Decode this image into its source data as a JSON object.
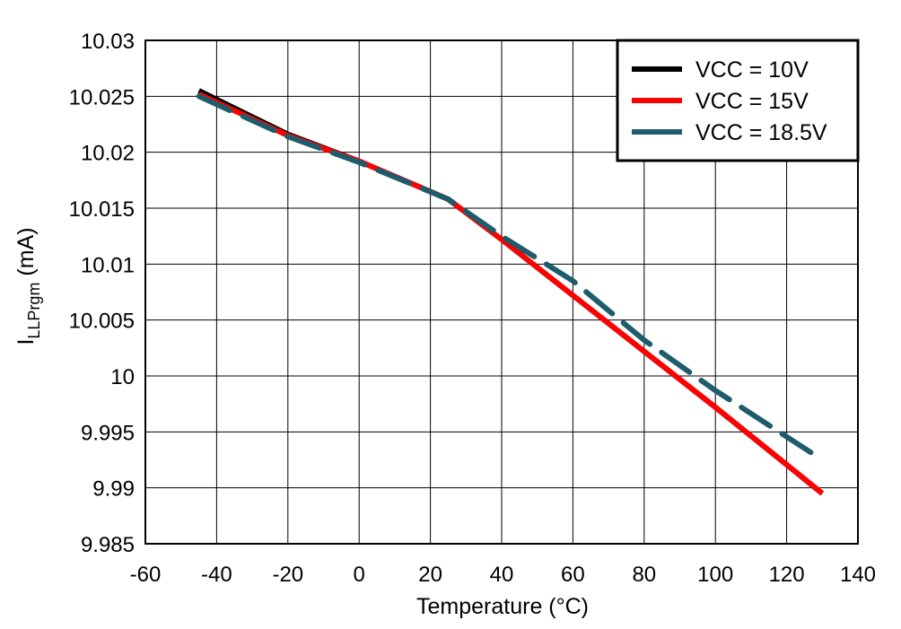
{
  "chart_data": {
    "type": "line",
    "title": "",
    "xlabel": "Temperature (°C)",
    "ylabel_main": "I",
    "ylabel_sub": "LLPrgm",
    "ylabel_unit": " (mA)",
    "xlim": [
      -60,
      140
    ],
    "ylim": [
      9.985,
      10.03
    ],
    "xticks": [
      -60,
      -40,
      -20,
      0,
      20,
      40,
      60,
      80,
      100,
      120,
      140
    ],
    "xtick_labels": [
      "-60",
      "-40",
      "-20",
      "0",
      "20",
      "40",
      "60",
      "80",
      "100",
      "120",
      "140"
    ],
    "yticks": [
      9.985,
      9.99,
      9.995,
      10,
      10.005,
      10.01,
      10.015,
      10.02,
      10.025,
      10.03
    ],
    "ytick_labels": [
      "9.985",
      "9.99",
      "9.995",
      "10",
      "10.005",
      "10.01",
      "10.015",
      "10.02",
      "10.025",
      "10.03"
    ],
    "grid": true,
    "legend_position": "top-right",
    "series": [
      {
        "name": "VCC = 10V",
        "color": "#000000",
        "style": "solid",
        "x": [
          -45,
          -20,
          0,
          25,
          40,
          60,
          80,
          100,
          130
        ],
        "y": [
          10.0255,
          10.0216,
          10.0192,
          10.0158,
          10.0122,
          10.0072,
          10.0022,
          9.9972,
          9.9895
        ]
      },
      {
        "name": "VCC = 15V",
        "color": "#ff0000",
        "style": "solid",
        "x": [
          -45,
          -20,
          0,
          25,
          40,
          60,
          80,
          100,
          130
        ],
        "y": [
          10.0252,
          10.0215,
          10.0192,
          10.0158,
          10.0122,
          10.0072,
          10.0022,
          9.9972,
          9.9895
        ]
      },
      {
        "name": "VCC = 18.5V",
        "color": "#1f5c6b",
        "style": "dashed",
        "x": [
          -45,
          -20,
          0,
          25,
          40,
          60,
          80,
          100,
          130
        ],
        "y": [
          10.025,
          10.0214,
          10.0191,
          10.0158,
          10.0125,
          10.0085,
          10.0032,
          9.9987,
          9.9925
        ]
      }
    ]
  }
}
